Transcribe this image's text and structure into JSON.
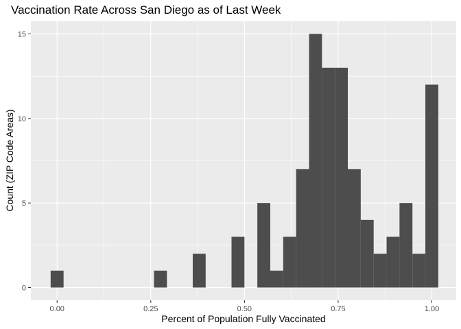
{
  "chart_data": {
    "type": "bar",
    "subtype": "histogram",
    "title": "Vaccination Rate Across San Diego as of Last Week",
    "xlabel": "Percent of Population Fully Vaccinated",
    "ylabel": "Count (ZIP Code Areas)",
    "xlim": [
      -0.07,
      1.065
    ],
    "ylim": [
      -0.75,
      15.75
    ],
    "bin_width": 0.0345,
    "x_ticks": [
      {
        "value": 0.0,
        "label": "0.00"
      },
      {
        "value": 0.25,
        "label": "0.25"
      },
      {
        "value": 0.5,
        "label": "0.50"
      },
      {
        "value": 0.75,
        "label": "0.75"
      },
      {
        "value": 1.0,
        "label": "1.00"
      }
    ],
    "y_ticks": [
      {
        "value": 0,
        "label": "0"
      },
      {
        "value": 5,
        "label": "5"
      },
      {
        "value": 10,
        "label": "10"
      },
      {
        "value": 15,
        "label": "15"
      }
    ],
    "grid": true,
    "bar_color": "#4d4d4d",
    "panel_color": "#ebebeb",
    "grid_color": "#ffffff",
    "bins": [
      {
        "x": 0.0,
        "count": 1
      },
      {
        "x": 0.2758,
        "count": 1
      },
      {
        "x": 0.3792,
        "count": 2
      },
      {
        "x": 0.4827,
        "count": 3
      },
      {
        "x": 0.5516,
        "count": 5
      },
      {
        "x": 0.5861,
        "count": 1
      },
      {
        "x": 0.6206,
        "count": 3
      },
      {
        "x": 0.6551,
        "count": 7
      },
      {
        "x": 0.6896,
        "count": 15
      },
      {
        "x": 0.724,
        "count": 13
      },
      {
        "x": 0.7585,
        "count": 13
      },
      {
        "x": 0.793,
        "count": 7
      },
      {
        "x": 0.8275,
        "count": 4
      },
      {
        "x": 0.862,
        "count": 2
      },
      {
        "x": 0.8965,
        "count": 3
      },
      {
        "x": 0.931,
        "count": 5
      },
      {
        "x": 0.9655,
        "count": 2
      },
      {
        "x": 1.0,
        "count": 12
      }
    ]
  }
}
